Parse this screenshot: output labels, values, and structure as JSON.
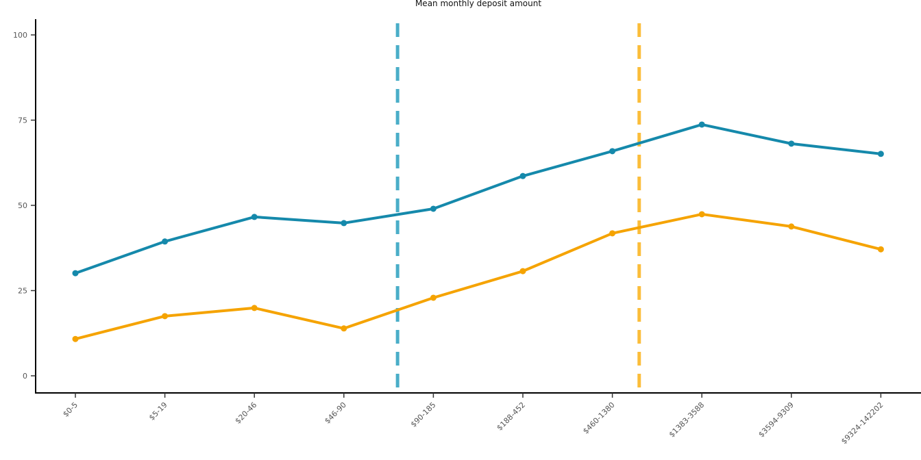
{
  "chart_data": {
    "type": "line",
    "title": "Mean monthly deposit amount",
    "xlabel": "",
    "ylabel": "",
    "categories": [
      "$0-5",
      "$5-19",
      "$20-46",
      "$46-90",
      "$90-185",
      "$188-452",
      "$460-1380",
      "$1383-3588",
      "$3594-9309",
      "$9324-142202"
    ],
    "ylim": [
      -5,
      105
    ],
    "yticks": [
      0,
      25,
      50,
      75,
      100
    ],
    "grid": false,
    "series": [
      {
        "name": "series-1",
        "color": "#1589ab",
        "values": [
          30.1,
          39.4,
          46.6,
          44.8,
          49.0,
          58.6,
          65.9,
          73.7,
          68.1,
          65.1
        ]
      },
      {
        "name": "series-2",
        "color": "#f5a300",
        "values": [
          10.8,
          17.5,
          19.9,
          13.9,
          22.9,
          30.7,
          41.8,
          47.4,
          43.8,
          37.1
        ]
      }
    ],
    "reference_lines": [
      {
        "name": "blue-dashed-marker",
        "x_index": 3.6,
        "color": "#4aaec8"
      },
      {
        "name": "orange-dashed-marker",
        "x_index": 6.3,
        "color": "#fbbd3a"
      }
    ]
  }
}
